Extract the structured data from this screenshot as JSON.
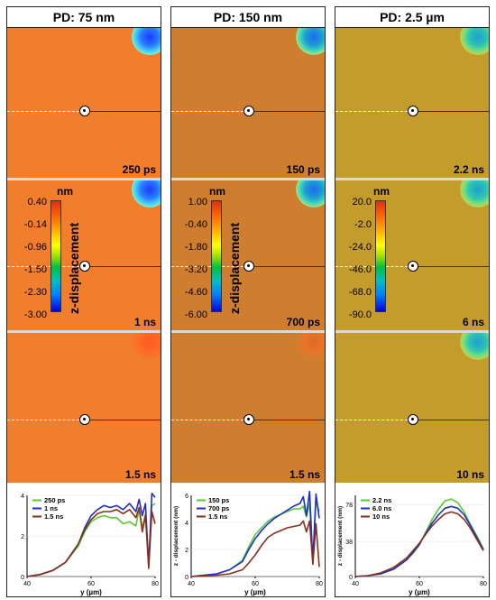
{
  "columns": [
    {
      "title": "PD: 75 nm",
      "background": "#f07e2d",
      "spot_color": "#2a7bff",
      "panel_times": [
        "250 ps",
        "1 ns",
        "1.5 ns"
      ],
      "colorbar": {
        "unit": "nm",
        "title": "z-displacement",
        "ticks": [
          "0.40",
          "-0.14",
          "-0.96",
          "-1.50",
          "-2.30",
          "-3.00"
        ]
      }
    },
    {
      "title": "PD: 150 nm",
      "background": "#cf7e2f",
      "spot_color": "#1f9f9f",
      "panel_times": [
        "150 ps",
        "700 ps",
        "1.5 ns"
      ],
      "colorbar": {
        "unit": "nm",
        "title": "z-displacement",
        "ticks": [
          "1.00",
          "-0.40",
          "-1.80",
          "-3.20",
          "-4.60",
          "-6.00"
        ]
      }
    },
    {
      "title": "PD: 2.5 µm",
      "background": "#c39c2c",
      "spot_color": "#2cb3b3",
      "panel_times": [
        "2.2 ns",
        "6 ns",
        "10 ns"
      ],
      "colorbar": {
        "unit": "nm",
        "title": "",
        "ticks": [
          "20.0",
          "-2.0",
          "-24.0",
          "-46.0",
          "-68.0",
          "-90.0"
        ]
      }
    }
  ],
  "chart_data": [
    {
      "type": "line",
      "xlabel": "y (µm)",
      "ylabel": "",
      "xlim": [
        40,
        80
      ],
      "ylim": [
        0,
        4
      ],
      "x_ticks": [
        "40",
        "60",
        "80"
      ],
      "y_ticks": [
        "0",
        "2",
        "4"
      ],
      "legend_position": "top-left",
      "series": [
        {
          "name": "250 ps",
          "color": "#55cc33",
          "x": [
            40,
            44,
            48,
            52,
            56,
            58,
            60,
            62,
            64,
            66,
            68,
            70,
            72,
            74,
            75,
            76,
            77,
            78,
            79,
            80
          ],
          "y": [
            0,
            0.1,
            0.3,
            0.7,
            1.5,
            2.2,
            2.7,
            2.9,
            3.0,
            2.9,
            2.9,
            2.6,
            2.7,
            2.5,
            3.3,
            2.4,
            3.1,
            0.8,
            3.5,
            3.6
          ]
        },
        {
          "name": "1 ns",
          "color": "#1f2fcc",
          "x": [
            40,
            44,
            48,
            52,
            56,
            58,
            60,
            62,
            64,
            66,
            68,
            70,
            72,
            74,
            75,
            76,
            77,
            78,
            79,
            80
          ],
          "y": [
            0,
            0.1,
            0.3,
            0.7,
            1.6,
            2.4,
            3.0,
            3.3,
            3.5,
            3.4,
            3.5,
            3.3,
            3.6,
            3.2,
            3.8,
            3.0,
            3.6,
            0.5,
            4.1,
            3.9
          ]
        },
        {
          "name": "1.5 ns",
          "color": "#8a2f1a",
          "x": [
            40,
            44,
            48,
            52,
            56,
            58,
            60,
            62,
            64,
            66,
            68,
            70,
            72,
            74,
            75,
            76,
            77,
            78,
            79,
            80
          ],
          "y": [
            0,
            0.1,
            0.3,
            0.7,
            1.6,
            2.3,
            2.8,
            3.1,
            3.2,
            3.2,
            3.3,
            3.1,
            3.3,
            2.9,
            3.4,
            2.2,
            3.0,
            0.4,
            3.2,
            2.6
          ]
        }
      ]
    },
    {
      "type": "line",
      "xlabel": "y (µm)",
      "ylabel": "z - displacement (nm)",
      "xlim": [
        40,
        80
      ],
      "ylim": [
        0,
        6
      ],
      "x_ticks": [
        "40",
        "60",
        "80"
      ],
      "y_ticks": [
        "0",
        "2",
        "4",
        "6"
      ],
      "legend_position": "top-left",
      "series": [
        {
          "name": "150 ps",
          "color": "#55cc33",
          "x": [
            40,
            44,
            48,
            52,
            56,
            58,
            60,
            62,
            64,
            66,
            68,
            70,
            72,
            74,
            75,
            76,
            77,
            78,
            79,
            80
          ],
          "y": [
            0,
            0.1,
            0.2,
            0.5,
            1.2,
            2.2,
            3.1,
            3.6,
            4.1,
            4.4,
            4.6,
            4.8,
            5.0,
            5.0,
            5.2,
            4.4,
            5.4,
            1.2,
            5.6,
            4.8
          ]
        },
        {
          "name": "700 ps",
          "color": "#1f2fcc",
          "x": [
            40,
            44,
            48,
            52,
            56,
            58,
            60,
            62,
            64,
            66,
            68,
            70,
            72,
            74,
            75,
            76,
            77,
            78,
            79,
            80
          ],
          "y": [
            0,
            0.1,
            0.2,
            0.5,
            1.1,
            2.0,
            2.8,
            3.4,
            3.9,
            4.3,
            4.6,
            4.9,
            5.2,
            5.4,
            5.9,
            4.5,
            6.3,
            1.1,
            6.1,
            4.3
          ]
        },
        {
          "name": "1.5 ns",
          "color": "#8a2f1a",
          "x": [
            40,
            44,
            48,
            52,
            56,
            58,
            60,
            62,
            64,
            66,
            68,
            70,
            72,
            74,
            75,
            76,
            77,
            78,
            79,
            80
          ],
          "y": [
            0,
            0.05,
            0.1,
            0.2,
            0.5,
            1.0,
            1.6,
            2.3,
            2.9,
            3.2,
            3.4,
            3.6,
            3.7,
            3.8,
            4.1,
            3.3,
            4.1,
            0.9,
            3.9,
            0.7
          ]
        }
      ]
    },
    {
      "type": "line",
      "xlabel": "y (µm)",
      "ylabel": "z - displacement (nm)",
      "xlim": [
        40,
        80
      ],
      "ylim": [
        0,
        88
      ],
      "x_ticks": [
        "40",
        "60",
        "80"
      ],
      "y_ticks": [
        "0",
        "38",
        "78"
      ],
      "legend_position": "top-left",
      "series": [
        {
          "name": "2.2 ns",
          "color": "#55cc33",
          "x": [
            40,
            44,
            48,
            52,
            56,
            58,
            60,
            62,
            64,
            66,
            68,
            70,
            72,
            74,
            76,
            78,
            80
          ],
          "y": [
            0,
            1,
            3,
            8,
            18,
            25,
            34,
            48,
            62,
            73,
            82,
            84,
            80,
            70,
            56,
            44,
            30
          ]
        },
        {
          "name": "6.0 ns",
          "color": "#1f2fcc",
          "x": [
            40,
            44,
            48,
            52,
            56,
            58,
            60,
            62,
            64,
            66,
            68,
            70,
            72,
            74,
            76,
            78,
            80
          ],
          "y": [
            0,
            1,
            3,
            8,
            18,
            26,
            35,
            47,
            58,
            67,
            74,
            76,
            74,
            67,
            55,
            42,
            29
          ]
        },
        {
          "name": "10 ns",
          "color": "#8a2f1a",
          "x": [
            40,
            44,
            48,
            52,
            56,
            58,
            60,
            62,
            64,
            66,
            68,
            70,
            72,
            74,
            76,
            78,
            80
          ],
          "y": [
            0,
            1,
            4,
            10,
            20,
            28,
            36,
            46,
            55,
            62,
            68,
            70,
            68,
            62,
            52,
            40,
            28
          ]
        }
      ]
    }
  ]
}
